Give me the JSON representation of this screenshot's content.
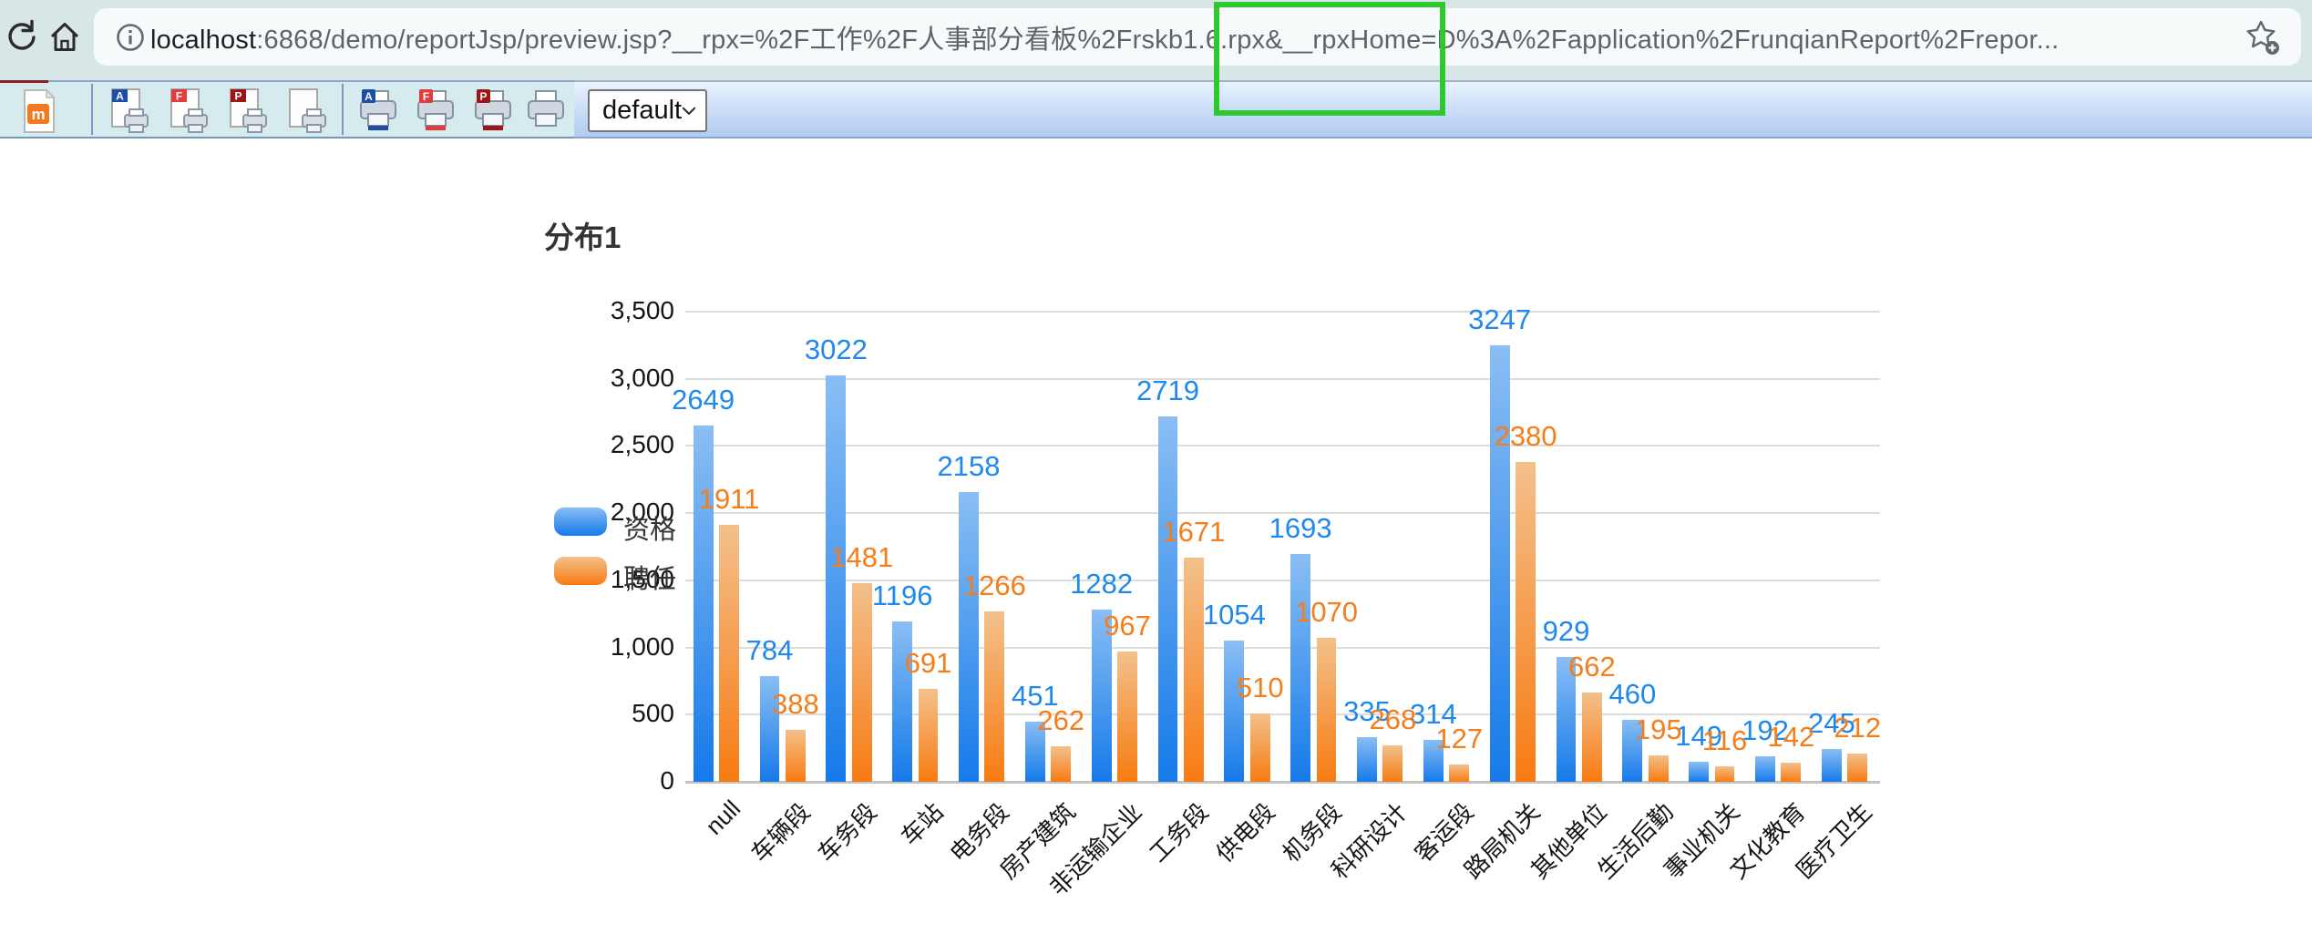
{
  "browser": {
    "url_host": "localhost",
    "url_rest": ":6868/demo/reportJsp/preview.jsp?__rpx=%2F工作%2F人事部分看板%2Frskb1.6.rpx&__rpxHome=D%3A%2Fapplication%2FrunqianReport%2Frepor..."
  },
  "toolbar": {
    "select_value": "default",
    "export_icons": [
      {
        "letter": "A",
        "color": "#1d4ea6"
      },
      {
        "letter": "F",
        "color": "#e23d3d"
      },
      {
        "letter": "P",
        "color": "#9e1515"
      },
      {
        "letter": "",
        "color": "none"
      }
    ],
    "printer_icons": [
      {
        "letter": "A",
        "color": "#1d4ea6"
      },
      {
        "letter": "F",
        "color": "#e23d3d"
      },
      {
        "letter": "P",
        "color": "#9e1515"
      },
      {
        "letter": "",
        "color": "none"
      }
    ]
  },
  "annotation": {
    "highlight_color": "#2fc82f"
  },
  "chart_data": {
    "type": "bar",
    "title": "分布1",
    "categories": [
      "null",
      "车辆段",
      "车务段",
      "车站",
      "电务段",
      "房产建筑",
      "非运输企业",
      "工务段",
      "供电段",
      "机务段",
      "科研设计",
      "客运段",
      "路局机关",
      "其他单位",
      "生活后勤",
      "事业机关",
      "文化教育",
      "医疗卫生"
    ],
    "series": [
      {
        "name": "资格",
        "label_color": "#1e88ee",
        "gradient_top": "#8abef4",
        "gradient_bottom": "#157ae9",
        "values": [
          2649,
          784,
          3022,
          1196,
          2158,
          451,
          1282,
          2719,
          1054,
          1693,
          335,
          314,
          3247,
          929,
          460,
          149,
          192,
          245
        ]
      },
      {
        "name": "聘任",
        "label_color": "#f57d1a",
        "gradient_top": "#f3c08b",
        "gradient_bottom": "#f87b12",
        "values": [
          1911,
          388,
          1481,
          691,
          1266,
          262,
          967,
          1671,
          510,
          1070,
          268,
          127,
          2380,
          662,
          195,
          116,
          142,
          212
        ]
      }
    ],
    "ylim": [
      0,
      3500
    ],
    "ytick_interval": 500,
    "ytick_labels": [
      "0",
      "500",
      "1,000",
      "1,500",
      "2,000",
      "2,500",
      "3,000",
      "3,500"
    ],
    "grid": true,
    "legend_position": "middle-left",
    "value_labels": true,
    "x_label_rotation": 45
  }
}
